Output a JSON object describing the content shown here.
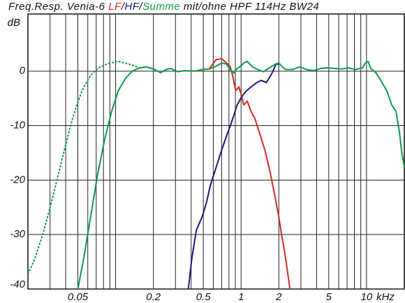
{
  "chart_data": {
    "type": "line",
    "title_prefix": "Freq.Resp. Venia-6",
    "title_separator": "/",
    "title_suffix": "mit/ohne HPF 114Hz BW24",
    "y_label": "dB",
    "x_label": "kHz",
    "log_x": true,
    "grid": true,
    "xlim": [
      0.02,
      20
    ],
    "ylim": [
      -40,
      10.5
    ],
    "xticks": [
      0.05,
      0.2,
      0.5,
      1,
      2,
      5,
      10
    ],
    "xminor": [
      0.03,
      0.04,
      0.06,
      0.07,
      0.08,
      0.09,
      0.1,
      0.3,
      0.4,
      0.6,
      0.7,
      0.8,
      0.9,
      3,
      4,
      6,
      7,
      8,
      9
    ],
    "yticks": [
      0,
      -10,
      -20,
      -30,
      -40
    ],
    "series": [
      {
        "color": "#11974a",
        "dash": true,
        "x": [
          0.02,
          0.0227,
          0.0258,
          0.0293,
          0.0333,
          0.0378,
          0.043,
          0.0489,
          0.0556,
          0.0632,
          0.0718,
          0.087,
          0.105,
          0.128,
          0.155,
          0.176
        ],
        "values": [
          -37.3,
          -34.4,
          -30.5,
          -26,
          -20.9,
          -15.8,
          -10.6,
          -6.2,
          -2.9,
          -0.8,
          0.5,
          1.4,
          1.8,
          1.3,
          0.6,
          0.8
        ]
      },
      {
        "name": "LF",
        "color": "#d42a1e",
        "x": [
          0.431,
          0.49,
          0.556,
          0.632,
          0.7,
          0.766,
          0.817,
          0.86,
          0.906,
          0.96,
          1.0,
          1.05,
          1.12,
          1.2,
          1.29,
          1.4,
          1.55,
          1.72,
          1.88,
          2.0,
          2.1,
          2.22,
          2.33,
          2.45
        ],
        "values": [
          0,
          0.3,
          0.4,
          2.1,
          2.3,
          1.5,
          0.9,
          -1,
          -3.6,
          -2.9,
          -4.2,
          -6.2,
          -5.5,
          -7.4,
          -8.7,
          -11.3,
          -14.5,
          -19,
          -23.5,
          -26.7,
          -29.9,
          -33.1,
          -36.3,
          -40
        ]
      },
      {
        "name": "HF",
        "color": "#1a1a7a",
        "x": [
          0.38,
          0.405,
          0.44,
          0.49,
          0.53,
          0.57,
          0.632,
          0.7,
          0.766,
          0.84,
          0.93,
          1.0,
          1.08,
          1.2,
          1.33,
          1.45,
          1.59,
          1.76,
          1.9,
          2.05
        ],
        "values": [
          -40,
          -34.4,
          -29.2,
          -26.7,
          -24.1,
          -20.9,
          -17.7,
          -14.5,
          -11.9,
          -9.4,
          -6.2,
          -4.9,
          -3.8,
          -2.9,
          -2.1,
          -1.7,
          -2.1,
          -0.4,
          1.3,
          1.3
        ]
      },
      {
        "name": "Summe",
        "color": "#11974a",
        "x": [
          0.05,
          0.0556,
          0.0632,
          0.0718,
          0.0817,
          0.0928,
          0.105,
          0.12,
          0.136,
          0.155,
          0.176,
          0.205,
          0.228,
          0.252,
          0.275,
          0.313,
          0.356,
          0.431,
          0.49,
          0.556,
          0.632,
          0.7,
          0.766,
          0.817,
          0.88,
          0.93,
          0.99,
          1.05,
          1.12,
          1.23,
          1.36,
          1.51,
          1.65,
          1.88,
          2.0,
          2.13,
          2.27,
          2.58,
          2.94,
          3.34,
          3.79,
          4.31,
          4.9,
          5.56,
          6.32,
          7.18,
          8.17,
          9.28,
          9.78,
          10.3,
          10.8,
          12,
          13.3,
          14.5,
          15.9,
          17.2,
          18.3,
          19,
          20
        ],
        "values": [
          -40,
          -34.4,
          -26.7,
          -19,
          -12.6,
          -7.4,
          -3.6,
          -1.3,
          0,
          0.6,
          0.8,
          0.3,
          -0.3,
          0.3,
          0.5,
          -0.1,
          0.1,
          0,
          0.3,
          0.4,
          0.9,
          1.5,
          1.3,
          0.3,
          -0.4,
          0.5,
          0.9,
          1.5,
          1.8,
          0.8,
          0.3,
          -0.1,
          0.5,
          1.3,
          1.5,
          0.8,
          0.3,
          0.3,
          0.8,
          0.3,
          0.1,
          0.5,
          0.6,
          0.5,
          0.4,
          0.6,
          0.3,
          0.6,
          1.5,
          1.8,
          0.5,
          -0.4,
          -2.1,
          -3.6,
          -6.2,
          -7.4,
          -11.3,
          -14.5,
          -17.7
        ]
      }
    ]
  }
}
